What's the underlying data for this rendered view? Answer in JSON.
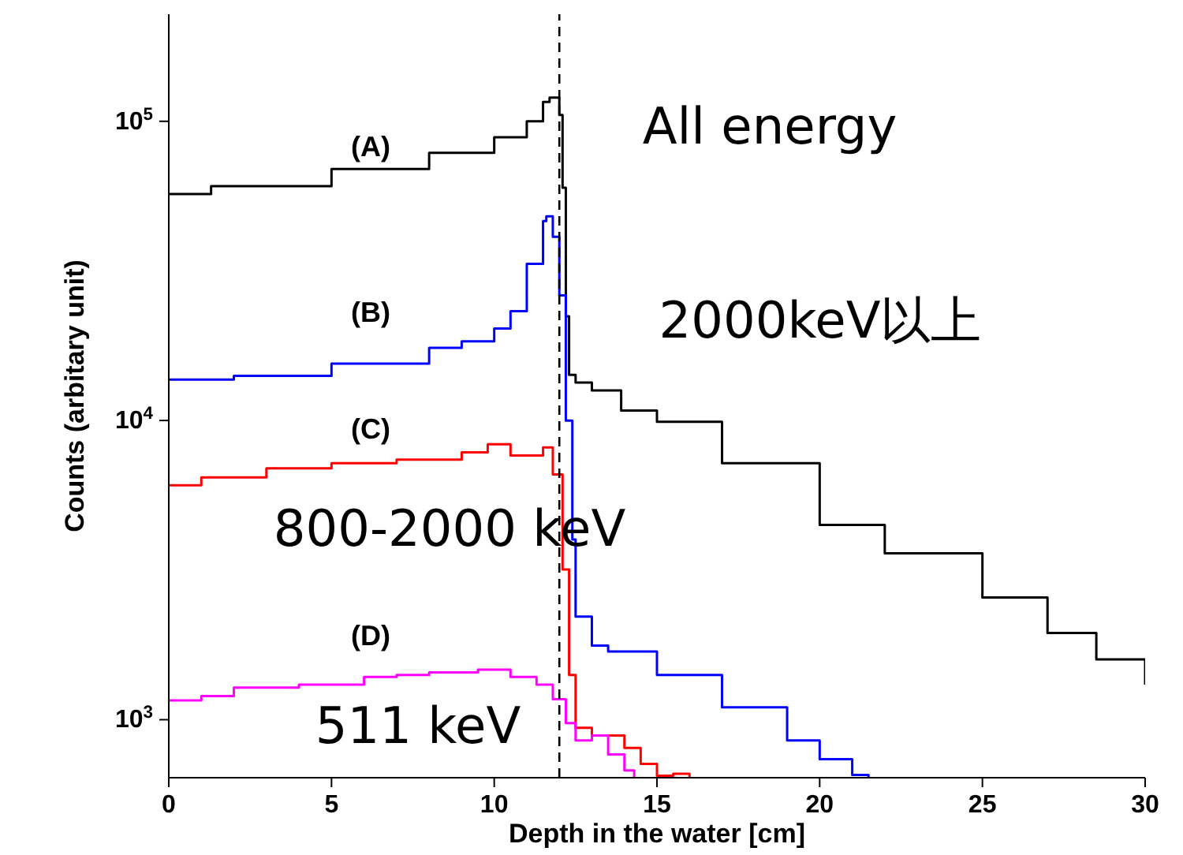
{
  "chart_data": {
    "type": "step",
    "xlabel": "Depth in the water [cm]",
    "ylabel": "Counts (arbitary unit)",
    "xlim": [
      0,
      30
    ],
    "xticks": [
      0,
      5,
      10,
      15,
      20,
      25,
      30
    ],
    "ylim": [
      640,
      228000
    ],
    "log": "y",
    "yticks": [
      {
        "value": 1000,
        "label": "10$^{3}$"
      },
      {
        "value": 10000,
        "label": "10$^{4}$"
      },
      {
        "value": 100000,
        "label": "10$^{5}$"
      }
    ],
    "grid": false,
    "legend": false,
    "series": [
      {
        "color": "#000000",
        "x": [
          0,
          1.3,
          5,
          8,
          10,
          11,
          11.5,
          11.7,
          12,
          12.1,
          12.2,
          12.3,
          12.5,
          13,
          13.9,
          15,
          17,
          20,
          22,
          25,
          27,
          28.5,
          30
        ],
        "values": [
          57100,
          60700,
          69300,
          78400,
          88500,
          100000,
          116000,
          120000,
          105000,
          60000,
          22300,
          14200,
          13400,
          12600,
          10800,
          9900,
          7200,
          4480,
          3600,
          2560,
          1950,
          1590,
          1310
        ]
      },
      {
        "color": "#0000ff",
        "x": [
          0,
          2,
          5,
          8,
          9,
          10,
          10.5,
          11,
          11.5,
          11.6,
          11.8,
          12,
          12.2,
          12.4,
          12.5,
          13,
          13.5,
          15,
          17,
          19,
          20,
          21,
          21.5
        ],
        "values": [
          13700,
          14100,
          15500,
          17500,
          18400,
          20300,
          23200,
          33400,
          46400,
          48100,
          41100,
          26200,
          10000,
          4000,
          2210,
          1770,
          1690,
          1410,
          1100,
          853,
          738,
          654,
          640
        ]
      },
      {
        "color": "#ff0000",
        "x": [
          0,
          1,
          3,
          5,
          7,
          9,
          9.8,
          10.5,
          11.5,
          11.8,
          12.1,
          12.3,
          12.5,
          13,
          14,
          14.5,
          15,
          15.5,
          16
        ],
        "values": [
          6070,
          6450,
          6920,
          7200,
          7400,
          7830,
          8330,
          7640,
          8130,
          6600,
          3180,
          1410,
          940,
          885,
          805,
          712,
          650,
          660,
          640
        ]
      },
      {
        "color": "#ff00ff",
        "x": [
          0,
          1,
          2,
          4,
          6,
          7,
          8,
          9.5,
          10.5,
          11.3,
          11.8,
          12.2,
          12.5,
          13,
          13.5,
          14,
          14.3
        ],
        "values": [
          1160,
          1200,
          1280,
          1310,
          1390,
          1410,
          1440,
          1470,
          1390,
          1310,
          1170,
          975,
          853,
          885,
          766,
          677,
          640
        ]
      }
    ],
    "ref_lines": [
      {
        "axis": "x",
        "value": 12,
        "line_style": "dashed",
        "color": "#000000"
      }
    ],
    "annotations": [
      "(A)",
      "(B)",
      "(C)",
      "(D)",
      "All energy",
      "2000keV以上",
      "800-2000 keV",
      "511 keV"
    ]
  }
}
